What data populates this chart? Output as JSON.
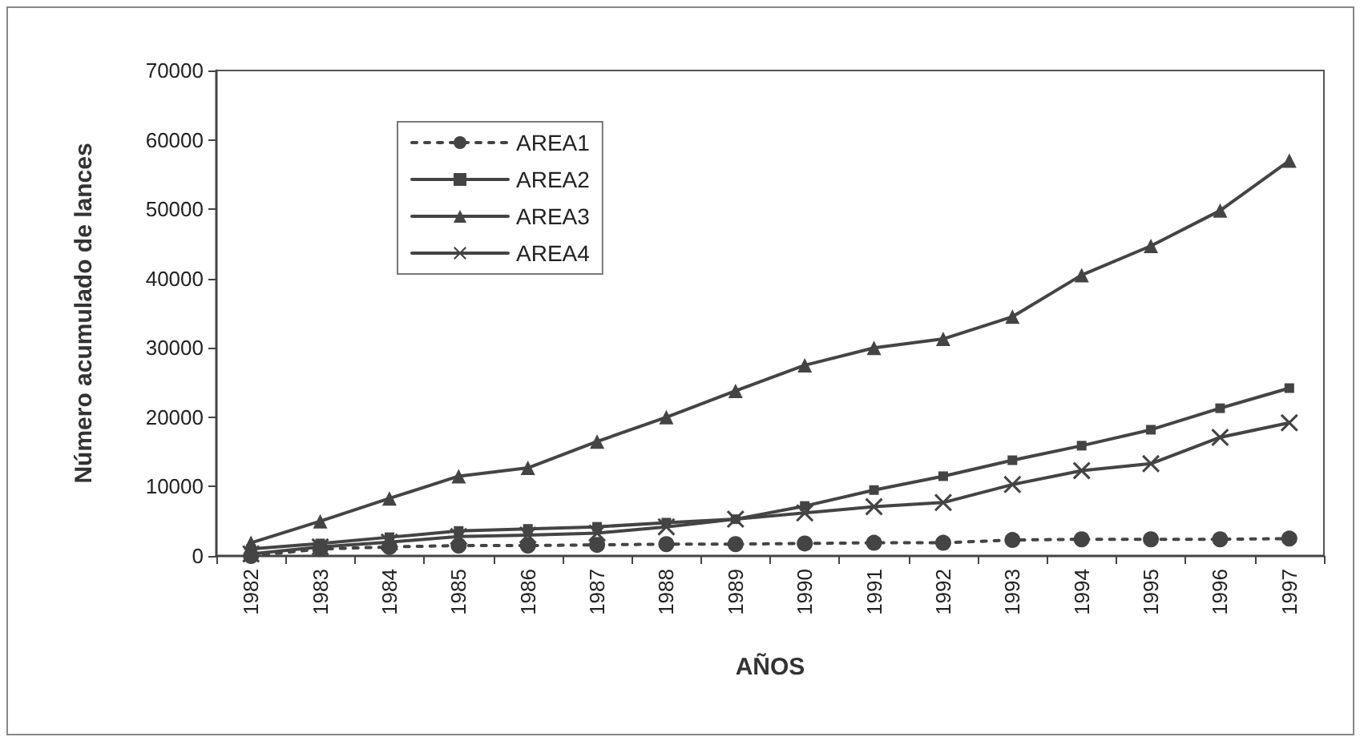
{
  "chart_data": {
    "type": "line",
    "xlabel": "AÑOS",
    "ylabel": "Número acumulado de lances",
    "categories": [
      "1982",
      "1983",
      "1984",
      "1985",
      "1986",
      "1987",
      "1988",
      "1989",
      "1990",
      "1991",
      "1992",
      "1993",
      "1994",
      "1995",
      "1996",
      "1997"
    ],
    "series": [
      {
        "name": "AREA1",
        "color": "#444444",
        "marker": "circle",
        "line_style": "dotted",
        "values": [
          0,
          1000,
          1300,
          1500,
          1500,
          1600,
          1700,
          1700,
          1800,
          1900,
          1900,
          2300,
          2400,
          2400,
          2400,
          2500
        ]
      },
      {
        "name": "AREA2",
        "color": "#444444",
        "marker": "square",
        "line_style": "solid",
        "values": [
          1000,
          1800,
          2700,
          3600,
          3900,
          4200,
          4800,
          5300,
          7200,
          9500,
          11500,
          13800,
          15900,
          18200,
          21300,
          24200
        ]
      },
      {
        "name": "AREA3",
        "color": "#444444",
        "marker": "triangle",
        "line_style": "solid",
        "values": [
          1900,
          5000,
          8300,
          11500,
          12700,
          16500,
          20000,
          23800,
          27500,
          30000,
          31300,
          34500,
          40500,
          44700,
          49800,
          57000
        ]
      },
      {
        "name": "AREA4",
        "color": "#444444",
        "marker": "cross",
        "line_style": "solid",
        "values": [
          300,
          1300,
          2000,
          2800,
          3000,
          3300,
          4200,
          5300,
          6200,
          7100,
          7700,
          10300,
          12300,
          13300,
          17100,
          19200
        ]
      }
    ],
    "ylim": [
      0,
      70000
    ],
    "yticks": [
      0,
      10000,
      20000,
      30000,
      40000,
      50000,
      60000,
      70000
    ],
    "grid": false,
    "legend": "top left"
  }
}
